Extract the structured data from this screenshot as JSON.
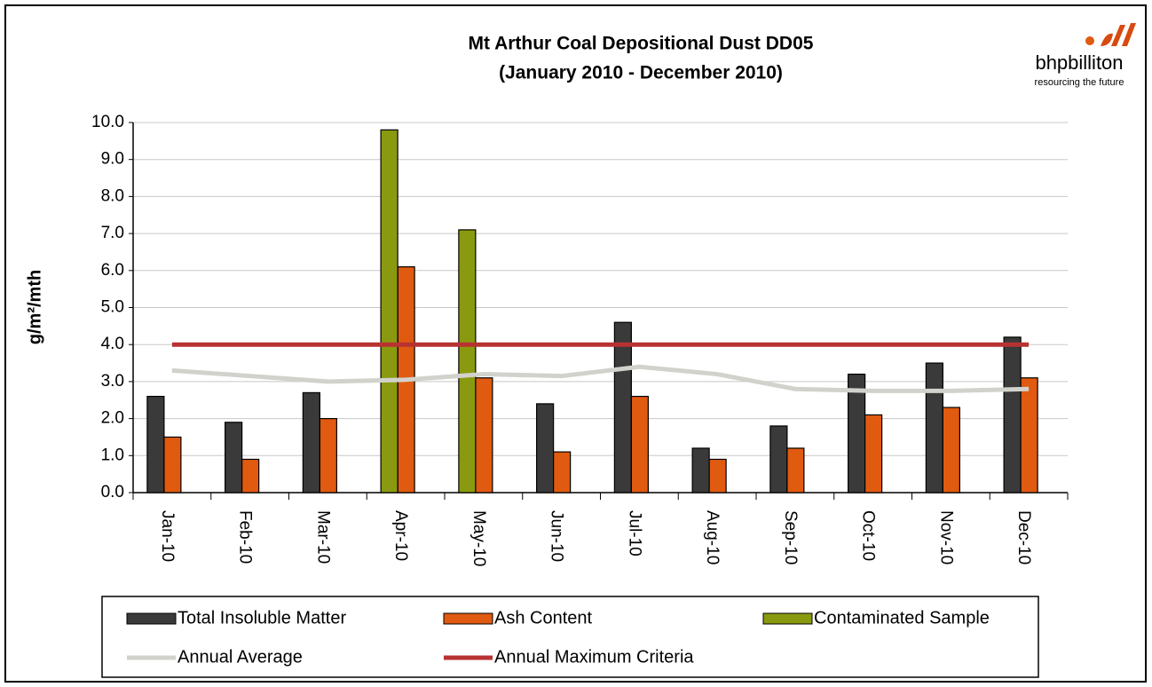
{
  "chart_data": {
    "type": "bar",
    "title": "Mt Arthur Coal Depositional  Dust DD05",
    "subtitle": "(January  2010 - December  2010)",
    "y_label": "g/m²/mth",
    "logo": {
      "name": "bhpbilliton",
      "tagline": "resourcing the future"
    },
    "categories": [
      "Jan-10",
      "Feb-10",
      "Mar-10",
      "Apr-10",
      "May-10",
      "Jun-10",
      "Jul-10",
      "Aug-10",
      "Sep-10",
      "Oct-10",
      "Nov-10",
      "Dec-10"
    ],
    "series": [
      {
        "name": "Total Insoluble Matter",
        "type": "bar",
        "slot": 0,
        "color": "#3a3a3a",
        "values": [
          2.6,
          1.9,
          2.7,
          null,
          null,
          2.4,
          4.6,
          1.2,
          1.8,
          3.2,
          3.5,
          4.2
        ]
      },
      {
        "name": "Ash Content",
        "type": "bar",
        "slot": 1,
        "color": "#e05a10",
        "values": [
          1.5,
          0.9,
          2.0,
          6.1,
          3.1,
          1.1,
          2.6,
          0.9,
          1.2,
          2.1,
          2.3,
          3.1
        ]
      },
      {
        "name": "Contaminated Sample",
        "type": "bar",
        "slot": 0,
        "color": "#8a9a10",
        "values": [
          null,
          null,
          null,
          9.8,
          7.1,
          null,
          null,
          null,
          null,
          null,
          null,
          null
        ]
      },
      {
        "name": "Annual Average",
        "type": "line",
        "color": "#d2d2cc",
        "values": [
          3.3,
          3.15,
          3.0,
          3.05,
          3.2,
          3.15,
          3.4,
          3.2,
          2.8,
          2.75,
          2.75,
          2.8
        ]
      },
      {
        "name": "Annual Maximum Criteria",
        "type": "line",
        "color": "#b83232",
        "values": [
          4,
          4,
          4,
          4,
          4,
          4,
          4,
          4,
          4,
          4,
          4,
          4
        ]
      }
    ],
    "ylim": [
      0,
      10
    ],
    "yticks": [
      {
        "value": 0,
        "label": "0.0"
      },
      {
        "value": 1,
        "label": "1.0"
      },
      {
        "value": 2,
        "label": "2.0"
      },
      {
        "value": 3,
        "label": "3.0"
      },
      {
        "value": 4,
        "label": "4.0"
      },
      {
        "value": 5,
        "label": "5.0"
      },
      {
        "value": 6,
        "label": "6.0"
      },
      {
        "value": 7,
        "label": "7.0"
      },
      {
        "value": 8,
        "label": "8.0"
      },
      {
        "value": 9,
        "label": "9.0"
      },
      {
        "value": 10,
        "label": "10.0"
      }
    ],
    "grid": true
  }
}
